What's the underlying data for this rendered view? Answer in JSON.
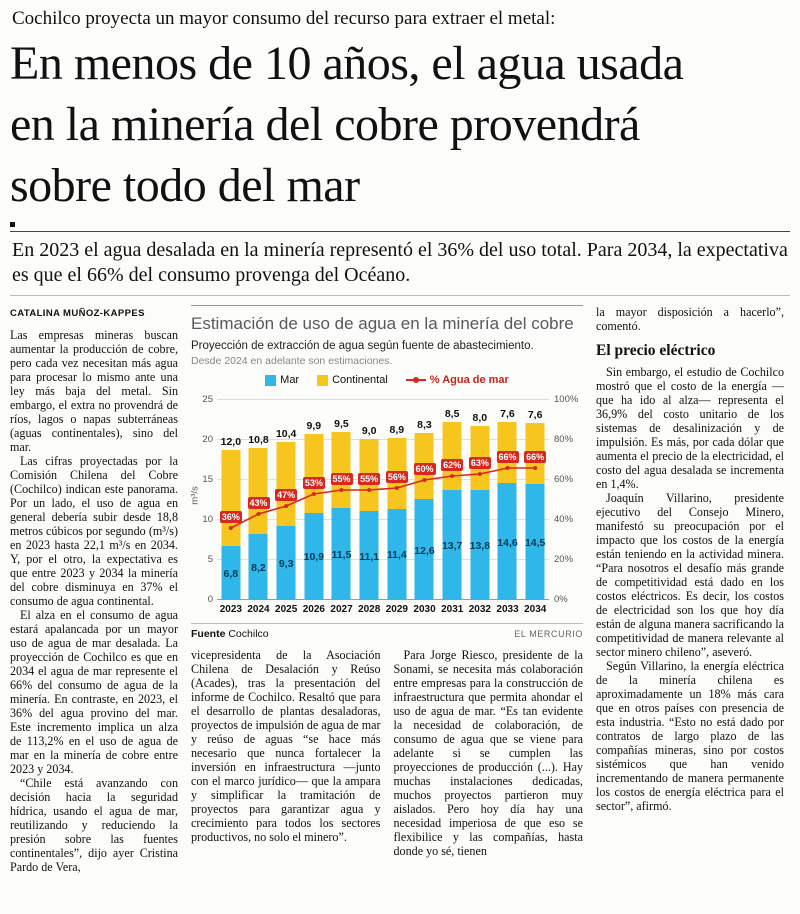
{
  "page": {
    "kicker": "Cochilco proyecta un mayor consumo del recurso para extraer el metal:",
    "headline": "En menos de 10 años, el agua usada en la minería del cobre provendrá sobre todo del mar",
    "deck": "En 2023 el agua desalada en la minería representó el 36% del uso total. Para 2034, la expectativa es que el 66% del consumo provenga del Océano.",
    "byline": "CATALINA MUÑOZ-KAPPES"
  },
  "article": {
    "col1": [
      "Las empresas mineras buscan aumentar la producción de cobre, pero cada vez necesitan más agua para procesar lo mismo ante una ley más baja del metal. Sin embargo, el extra no provendrá de ríos, lagos o napas subterráneas (aguas continentales), sino del mar.",
      "Las cifras proyectadas por la Comisión Chilena del Cobre (Cochilco) indican este panorama. Por un lado, el uso de agua en general debería subir desde 18,8 metros cúbicos por segundo (m³/s) en 2023 hasta 22,1 m³/s en 2034. Y, por el otro, la expectativa es que entre 2023 y 2034 la minería del cobre disminuya en 37% el consumo de agua continental.",
      "El alza en el consumo de agua estará apalancada por un mayor uso de agua de mar desalada. La proyección de Cochilco es que en 2034 el agua de mar represente el 66% del consumo de agua de la minería. En contraste, en 2023, el 36% del agua provino del mar. Este incremento implica un alza de 113,2% en el uso de agua de mar en la minería de cobre entre 2023 y 2034.",
      "“Chile está avanzando con decisión hacia la seguridad hídrica, usando el agua de mar, reutilizando y reduciendo la presión sobre las fuentes continentales”, dijo ayer Cristina Pardo de Vera,"
    ],
    "col2": [
      "vicepresidenta de la Asociación Chilena de Desalación y Reúso (Acades), tras la presentación del informe de Cochilco. Resaltó que para el desarrollo de plantas desaladoras, proyectos de impulsión de agua de mar y reúso de aguas “se hace más necesario que nunca fortalecer la inversión en infraestructura —junto con el marco jurídico— que la ampara y simplificar la tramitación de proyectos para garantizar agua y crecimiento para todos los sectores productivos, no solo el minero”."
    ],
    "col3": [
      "Para Jorge Riesco, presidente de la Sonami, se necesita más colaboración entre empresas para la construcción de infraestructura que permita ahondar el uso de agua de mar. “Es tan evidente la necesidad de colaboración, de consumo de agua que se viene para adelante si se cumplen las proyecciones de producción (...). Hay muchas instalaciones dedicadas, muchos proyectos partieron muy aislados. Pero hoy día hay una necesidad imperiosa de que eso se flexibilice y las compañías, hasta donde yo sé, tienen"
    ],
    "col4_intro": "la mayor disposición a hacerlo”, comentó.",
    "col4_heading": "El precio eléctrico",
    "col4": [
      "Sin embargo, el estudio de Cochilco mostró que el costo de la energía —que ha ido al alza— representa el 36,9% del costo unitario de los sistemas de desalinización y de impulsión. Es más, por cada dólar que aumenta el precio de la electricidad, el costo del agua desalada se incrementa en 1,4%.",
      "Joaquín Villarino, presidente ejecutivo del Consejo Minero, manifestó su preocupación por el impacto que los costos de la energía están teniendo en la actividad minera. “Para nosotros el desafío más grande de competitividad está dado en los costos eléctricos. Es decir, los costos de electricidad son los que hoy día están de alguna manera sacrificando la competitividad de manera relevante al sector minero chileno”, aseveró.",
      "Según Villarino, la energía eléctrica de la minería chilena es aproximadamente un 18% más cara que en otros países con presencia de esta industria. “Esto no está dado por contratos de largo plazo de las compañías mineras, sino por costos sistémicos que han venido incrementando de manera permanente los costos de energía eléctrica para el sector”, afirmó."
    ]
  },
  "chart": {
    "title": "Estimación de uso de agua en la minería del cobre",
    "subtitle": "Proyección de extracción de agua según fuente de abastecimiento.",
    "note": "Desde 2024 en adelante son estimaciones.",
    "ylabel": "m³/s",
    "source_label": "Fuente",
    "source": "Cochilco",
    "credit": "EL MERCURIO",
    "colors": {
      "mar": "#2eb7e8",
      "continental": "#f6c51e",
      "line": "#d7281e",
      "line_label": "#c0271c"
    }
  },
  "chart_data": {
    "type": "bar",
    "stacked": true,
    "categories": [
      "2023",
      "2024",
      "2025",
      "2026",
      "2027",
      "2028",
      "2029",
      "2030",
      "2031",
      "2032",
      "2033",
      "2034"
    ],
    "series": [
      {
        "name": "Mar",
        "values": [
          6.8,
          8.2,
          9.3,
          10.9,
          11.5,
          11.1,
          11.4,
          12.6,
          13.7,
          13.8,
          14.6,
          14.5
        ]
      },
      {
        "name": "Continental",
        "values": [
          12.0,
          10.8,
          10.4,
          9.9,
          9.5,
          9.0,
          8.9,
          8.3,
          8.5,
          8.0,
          7.6,
          7.6
        ]
      }
    ],
    "line": {
      "name": "% Agua de mar",
      "values": [
        36,
        43,
        47,
        53,
        55,
        55,
        56,
        60,
        62,
        63,
        66,
        66
      ]
    },
    "title": "Estimación de uso de agua en la minería del cobre",
    "xlabel": "",
    "ylabel": "m³/s",
    "ylim": [
      0,
      25
    ],
    "yticks": [
      0,
      5,
      10,
      15,
      20,
      25
    ],
    "y2lim": [
      0,
      100
    ],
    "y2ticks": [
      "0%",
      "20%",
      "40%",
      "60%",
      "80%",
      "100%"
    ],
    "grid": true,
    "legend_position": "top"
  }
}
